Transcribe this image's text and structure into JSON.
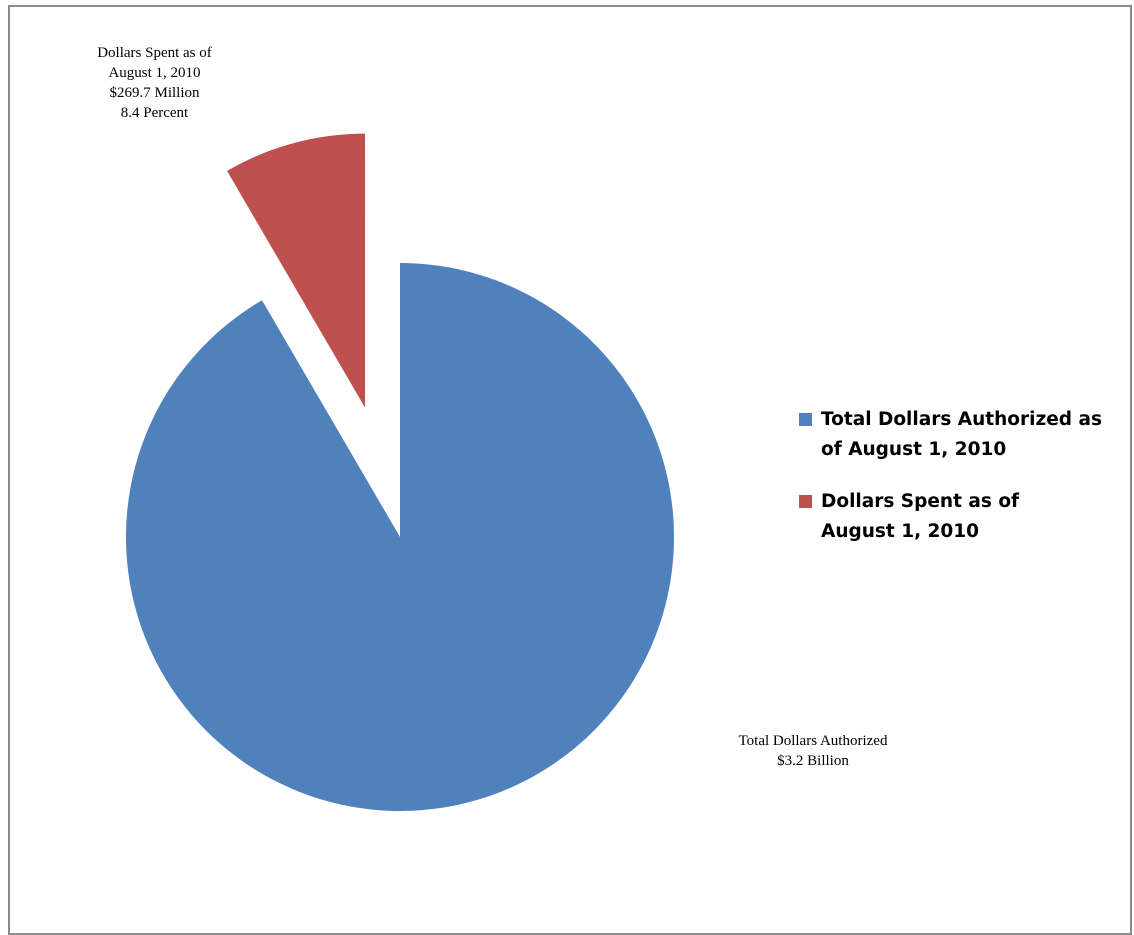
{
  "chart_data": {
    "type": "pie",
    "slices": [
      {
        "name": "Total Dollars Authorized as of August 1, 2010",
        "value": 91.6,
        "color": "#4f81bd",
        "exploded": false,
        "label_lines": [
          "Total Dollars Authorized",
          "$3.2 Billion"
        ]
      },
      {
        "name": "Dollars Spent as of August 1, 2010",
        "value": 8.4,
        "color": "#c0504d",
        "exploded": true,
        "label_lines": [
          "Dollars Spent as of",
          "August 1, 2010",
          "$269.7 Million",
          "8.4 Percent"
        ]
      }
    ],
    "start_angle": "12 o'clock",
    "direction": "counter-clockwise for spent slice",
    "legend_position": "right"
  },
  "legend": {
    "items": [
      {
        "lines": [
          "Total Dollars Authorized as",
          "of August 1, 2010"
        ],
        "color": "#4f81bd"
      },
      {
        "lines": [
          "Dollars Spent as of",
          "August 1, 2010"
        ],
        "color": "#c0504d"
      }
    ]
  }
}
